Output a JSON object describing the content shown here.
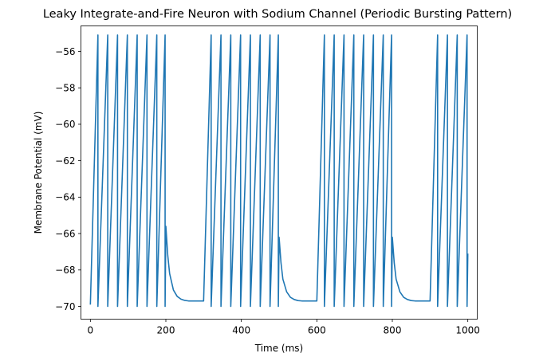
{
  "chart_data": {
    "type": "line",
    "title": "Leaky Integrate-and-Fire Neuron with Sodium Channel (Periodic Bursting Pattern)",
    "xlabel": "Time (ms)",
    "ylabel": "Membrane Potential (mV)",
    "xlim": [
      -25,
      1025
    ],
    "ylim": [
      -70.7,
      -54.6
    ],
    "xticks": [
      0,
      200,
      400,
      600,
      800,
      1000
    ],
    "yticks": [
      -70,
      -68,
      -66,
      -64,
      -62,
      -60,
      -58,
      -56
    ],
    "xtick_labels": [
      "0",
      "200",
      "400",
      "600",
      "800",
      "1000"
    ],
    "ytick_labels": [
      "−70",
      "−68",
      "−66",
      "−64",
      "−62",
      "−60",
      "−58",
      "−56"
    ],
    "grid": false,
    "legend": "none",
    "series": [
      {
        "color": "#1f77b4",
        "x": [
          0,
          20,
          20,
          46,
          46,
          72,
          72,
          98,
          98,
          124,
          124,
          150,
          150,
          176,
          176,
          198,
          198,
          200,
          205,
          210,
          220,
          230,
          240,
          250,
          260,
          270,
          280,
          290,
          300,
          320,
          320,
          346,
          346,
          372,
          372,
          398,
          398,
          424,
          424,
          450,
          450,
          476,
          476,
          498,
          498,
          500,
          505,
          510,
          520,
          530,
          540,
          550,
          560,
          570,
          580,
          590,
          600,
          620,
          620,
          646,
          646,
          672,
          672,
          698,
          698,
          724,
          724,
          750,
          750,
          776,
          776,
          798,
          798,
          800,
          805,
          810,
          820,
          830,
          840,
          850,
          860,
          870,
          880,
          890,
          900,
          920,
          920,
          946,
          946,
          972,
          972,
          998,
          998,
          1000
        ],
        "y": [
          -69.9,
          -55.1,
          -70.0,
          -55.1,
          -70.0,
          -55.1,
          -70.0,
          -55.1,
          -70.0,
          -55.1,
          -70.0,
          -55.1,
          -70.0,
          -55.1,
          -70.0,
          -55.1,
          -70.0,
          -65.6,
          -67.2,
          -68.2,
          -69.1,
          -69.45,
          -69.6,
          -69.67,
          -69.7,
          -69.7,
          -69.7,
          -69.7,
          -69.7,
          -55.1,
          -70.0,
          -55.1,
          -70.0,
          -55.1,
          -70.0,
          -55.1,
          -70.0,
          -55.1,
          -70.0,
          -55.1,
          -70.0,
          -55.1,
          -70.0,
          -55.1,
          -70.0,
          -66.2,
          -67.6,
          -68.5,
          -69.2,
          -69.5,
          -69.62,
          -69.68,
          -69.7,
          -69.7,
          -69.7,
          -69.7,
          -69.7,
          -55.1,
          -70.0,
          -55.1,
          -70.0,
          -55.1,
          -70.0,
          -55.1,
          -70.0,
          -55.1,
          -70.0,
          -55.1,
          -70.0,
          -55.1,
          -70.0,
          -55.1,
          -70.0,
          -66.2,
          -67.6,
          -68.5,
          -69.2,
          -69.5,
          -69.62,
          -69.68,
          -69.7,
          -69.7,
          -69.7,
          -69.7,
          -69.7,
          -55.1,
          -70.0,
          -55.1,
          -70.0,
          -55.1,
          -70.0,
          -55.1,
          -70.0,
          -67.1
        ]
      }
    ]
  }
}
